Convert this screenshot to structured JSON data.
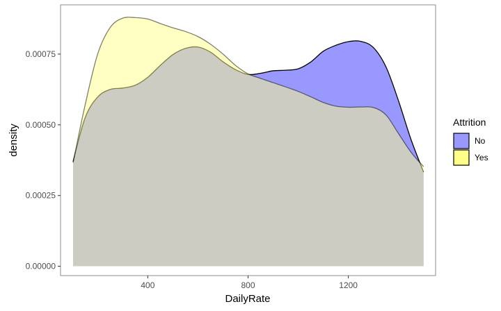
{
  "chart_data": {
    "type": "area",
    "xlabel": "DailyRate",
    "ylabel": "density",
    "xlim": [
      52,
      1548
    ],
    "ylim": [
      -3.3e-05,
      0.000924
    ],
    "x_ticks": [
      400,
      800,
      1200
    ],
    "x_tick_labels": [
      "400",
      "800",
      "1200"
    ],
    "y_ticks": [
      0,
      0.00025,
      0.0005,
      0.00075
    ],
    "y_tick_labels": [
      "0.00000",
      "0.00025",
      "0.00050",
      "0.00075"
    ],
    "grid": false,
    "legend": {
      "title": "Attrition",
      "position": "right"
    },
    "x": [
      102,
      150,
      200,
      250,
      300,
      350,
      400,
      450,
      500,
      550,
      600,
      650,
      700,
      750,
      800,
      850,
      900,
      950,
      1000,
      1050,
      1100,
      1150,
      1200,
      1250,
      1300,
      1350,
      1400,
      1450,
      1500
    ],
    "series": [
      {
        "name": "No",
        "color": "#9898ff",
        "values": [
          0.00037,
          0.000525,
          0.000598,
          0.000625,
          0.00063,
          0.00064,
          0.000668,
          0.00071,
          0.000748,
          0.00077,
          0.000775,
          0.000757,
          0.000723,
          0.000695,
          0.000678,
          0.000682,
          0.000691,
          0.000693,
          0.000698,
          0.000722,
          0.00076,
          0.000781,
          0.000794,
          0.000795,
          0.000773,
          0.000705,
          0.000585,
          0.000448,
          0.000333
        ]
      },
      {
        "name": "Yes",
        "color": "#ffff88",
        "values": [
          0.000366,
          0.00057,
          0.00075,
          0.000844,
          0.000877,
          0.000879,
          0.000874,
          0.000858,
          0.000843,
          0.00083,
          0.000812,
          0.000785,
          0.00075,
          0.00071,
          0.00068,
          0.000664,
          0.000649,
          0.000634,
          0.000618,
          0.000599,
          0.000579,
          0.000566,
          0.000562,
          0.000563,
          0.000561,
          0.000535,
          0.000469,
          0.000403,
          0.000352
        ]
      }
    ]
  }
}
